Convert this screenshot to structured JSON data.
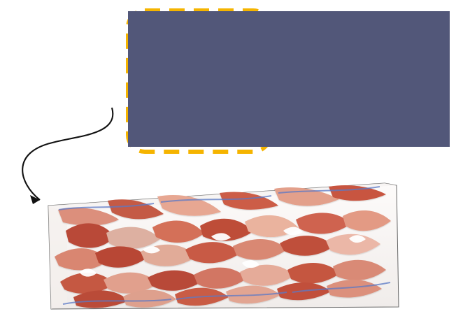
{
  "figure": {
    "top_panel": {
      "background_color": "#525779",
      "mesh_color": "#ffffff",
      "highlight_color": "#f5b400",
      "highlight_style": "dashed-rounded-rectangle"
    },
    "bottom_panel": {
      "structure_primary_color": "#c8533d",
      "structure_secondary_color": "#e6a38f",
      "boundary_color": "#5b79c6"
    },
    "arrow": {
      "color": "#111111",
      "direction": "from-mesh-detail-to-turbulence-render"
    }
  }
}
